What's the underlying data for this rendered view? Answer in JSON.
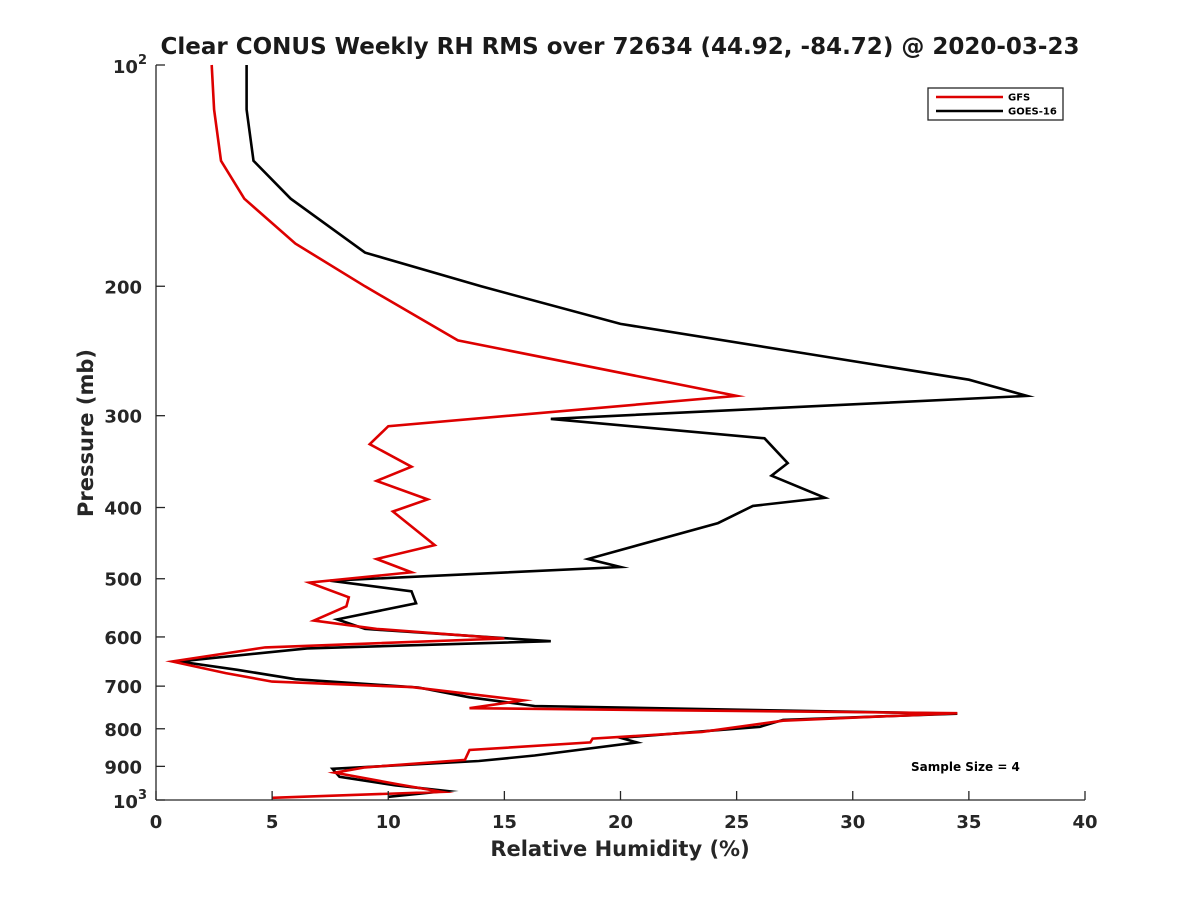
{
  "chart_data": {
    "type": "line",
    "title": "Clear CONUS Weekly RH RMS over 72634 (44.92, -84.72) @ 2020-03-23",
    "xlabel": "Relative Humidity (%)",
    "ylabel": "Pressure (mb)",
    "xlim": [
      0,
      40
    ],
    "ylim": [
      100,
      1000
    ],
    "yscale": "log",
    "y_reversed": true,
    "xticks": [
      0,
      5,
      10,
      15,
      20,
      25,
      30,
      35,
      40
    ],
    "xtick_labels": [
      "0",
      "5",
      "10",
      "15",
      "20",
      "25",
      "30",
      "35",
      "40"
    ],
    "yticks": [
      200,
      300,
      400,
      500,
      600,
      700,
      800,
      900
    ],
    "ytick_labels": [
      "200",
      "300",
      "400",
      "500",
      "600",
      "700",
      "800",
      "900"
    ],
    "ytick_pow": [
      {
        "value": 100,
        "base": "10",
        "exp": "2"
      },
      {
        "value": 1000,
        "base": "10",
        "exp": "3"
      }
    ],
    "legend_position": "top-right",
    "annotation": "Sample Size = 4",
    "series": [
      {
        "name": "GFS",
        "color": "#dd0000",
        "points": [
          [
            2.4,
            100
          ],
          [
            2.5,
            115
          ],
          [
            2.8,
            135
          ],
          [
            3.8,
            152
          ],
          [
            6.0,
            175
          ],
          [
            9.0,
            200
          ],
          [
            13.0,
            237
          ],
          [
            25.0,
            282
          ],
          [
            10.0,
            310
          ],
          [
            9.2,
            328
          ],
          [
            11.0,
            352
          ],
          [
            9.5,
            368
          ],
          [
            11.7,
            390
          ],
          [
            10.2,
            405
          ],
          [
            12.0,
            450
          ],
          [
            9.5,
            470
          ],
          [
            11.0,
            490
          ],
          [
            6.6,
            506
          ],
          [
            8.3,
            530
          ],
          [
            8.2,
            545
          ],
          [
            6.8,
            570
          ],
          [
            9.5,
            585
          ],
          [
            15.0,
            603
          ],
          [
            4.7,
            620
          ],
          [
            0.7,
            648
          ],
          [
            3.0,
            672
          ],
          [
            5.0,
            690
          ],
          [
            11.0,
            702
          ],
          [
            15.8,
            732
          ],
          [
            13.5,
            750
          ],
          [
            34.5,
            762
          ],
          [
            27.0,
            780
          ],
          [
            23.5,
            808
          ],
          [
            18.8,
            825
          ],
          [
            18.7,
            835
          ],
          [
            13.5,
            855
          ],
          [
            13.3,
            882
          ],
          [
            9.0,
            903
          ],
          [
            7.7,
            918
          ],
          [
            10.5,
            953
          ],
          [
            12.3,
            975
          ],
          [
            5.0,
            993
          ]
        ]
      },
      {
        "name": "GOES-16",
        "color": "#000000",
        "points": [
          [
            3.9,
            100
          ],
          [
            3.9,
            115
          ],
          [
            4.2,
            135
          ],
          [
            5.8,
            152
          ],
          [
            9.0,
            180
          ],
          [
            14.0,
            200
          ],
          [
            20.0,
            225
          ],
          [
            28.0,
            247
          ],
          [
            35.0,
            268
          ],
          [
            37.5,
            282
          ],
          [
            17.0,
            303
          ],
          [
            26.2,
            322
          ],
          [
            27.2,
            348
          ],
          [
            26.5,
            362
          ],
          [
            28.8,
            388
          ],
          [
            25.7,
            398
          ],
          [
            24.2,
            420
          ],
          [
            18.6,
            470
          ],
          [
            20.0,
            482
          ],
          [
            7.5,
            503
          ],
          [
            11.0,
            520
          ],
          [
            11.2,
            540
          ],
          [
            7.8,
            568
          ],
          [
            9.0,
            585
          ],
          [
            17.0,
            608
          ],
          [
            6.5,
            622
          ],
          [
            1.0,
            648
          ],
          [
            3.5,
            665
          ],
          [
            6.0,
            685
          ],
          [
            11.3,
            703
          ],
          [
            13.5,
            725
          ],
          [
            16.3,
            745
          ],
          [
            34.5,
            763
          ],
          [
            27.0,
            778
          ],
          [
            26.0,
            795
          ],
          [
            20.0,
            823
          ],
          [
            20.7,
            835
          ],
          [
            16.3,
            870
          ],
          [
            13.9,
            885
          ],
          [
            7.6,
            907
          ],
          [
            7.9,
            930
          ],
          [
            10.3,
            955
          ],
          [
            12.5,
            972
          ],
          [
            10.0,
            990
          ]
        ]
      }
    ]
  }
}
